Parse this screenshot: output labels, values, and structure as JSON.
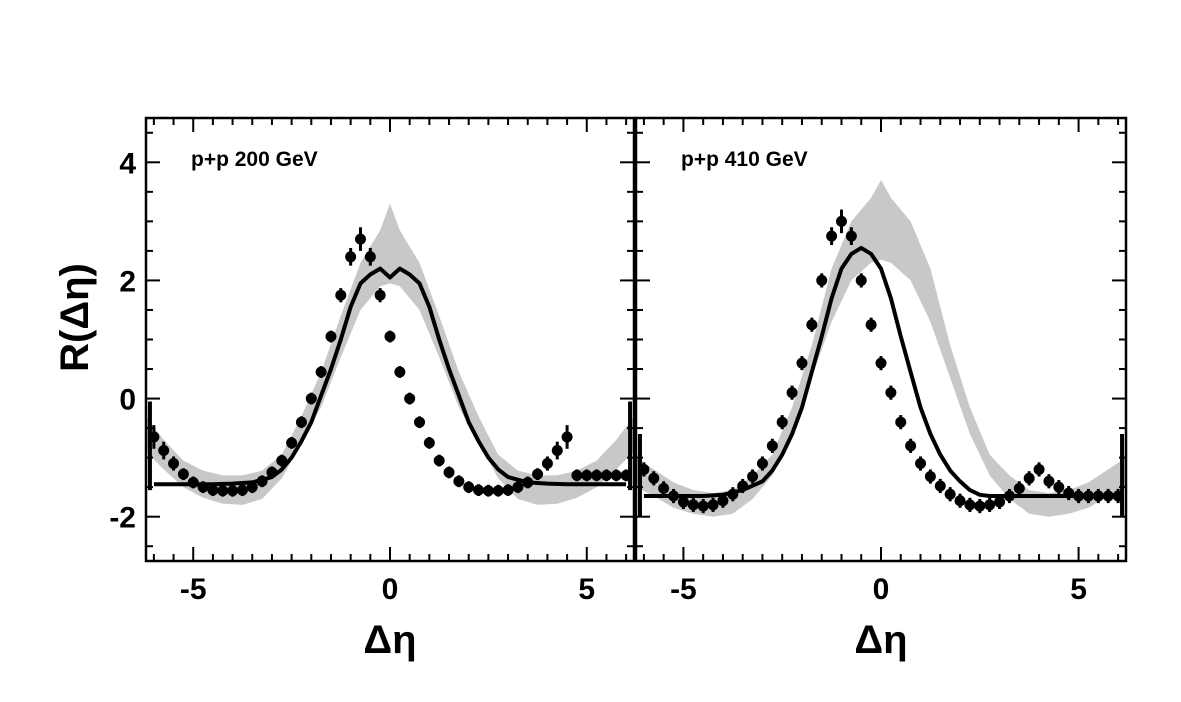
{
  "chart_data": [
    {
      "type": "scatter",
      "title": "p+p 200 GeV",
      "xlabel": "Δη",
      "ylabel": "R(Δη)",
      "xlim": [
        -6.2,
        6.2
      ],
      "ylim": [
        -2.75,
        4.75
      ],
      "xticks": [
        -5,
        0,
        5
      ],
      "yticks": [
        -2,
        0,
        2,
        4
      ],
      "x_tick_labels": [
        "-5",
        "0",
        "5"
      ],
      "y_tick_labels": [
        "-2",
        "0",
        "2",
        "4"
      ],
      "grid": false,
      "legend": "none",
      "series": [
        {
          "kind": "points",
          "x": [
            -6.0,
            -5.75,
            -5.5,
            -5.25,
            -5.0,
            -4.75,
            -4.5,
            -4.25,
            -4.0,
            -3.75,
            -3.5,
            -3.25,
            -3.0,
            -2.75,
            -2.5,
            -2.25,
            -2.0,
            -1.75,
            -1.5,
            -1.25,
            -1.0,
            -0.75,
            -0.5,
            -0.25,
            0.0,
            0.25,
            0.5,
            0.75,
            1.0,
            1.25,
            1.5,
            1.75,
            2.0,
            2.25,
            2.5,
            2.75,
            3.0,
            3.25,
            3.5,
            3.75,
            4.0,
            4.25,
            4.5,
            4.75,
            5.0,
            5.25,
            5.5,
            5.75,
            6.0
          ],
          "y": [
            -0.65,
            -0.88,
            -1.1,
            -1.28,
            -1.42,
            -1.5,
            -1.55,
            -1.56,
            -1.56,
            -1.55,
            -1.5,
            -1.4,
            -1.25,
            -1.05,
            -0.75,
            -0.4,
            0.0,
            0.45,
            1.05,
            1.75,
            2.4,
            2.7,
            2.4,
            1.75,
            1.05,
            0.45,
            0.0,
            -0.4,
            -0.75,
            -1.05,
            -1.25,
            -1.4,
            -1.5,
            -1.55,
            -1.56,
            -1.56,
            -1.55,
            -1.5,
            -1.42,
            -1.28,
            -1.1,
            -0.88,
            -0.65,
            -1.3,
            -1.3,
            -1.3,
            -1.3,
            -1.3,
            -1.3
          ],
          "yerr": [
            0.2,
            0.15,
            0.12,
            0.1,
            0.1,
            0.1,
            0.1,
            0.1,
            0.1,
            0.1,
            0.1,
            0.1,
            0.1,
            0.1,
            0.1,
            0.1,
            0.1,
            0.1,
            0.1,
            0.12,
            0.15,
            0.2,
            0.15,
            0.12,
            0.1,
            0.1,
            0.1,
            0.1,
            0.1,
            0.1,
            0.1,
            0.1,
            0.1,
            0.1,
            0.1,
            0.1,
            0.1,
            0.1,
            0.1,
            0.1,
            0.12,
            0.15,
            0.2,
            0.1,
            0.1,
            0.1,
            0.1,
            0.1,
            0.1
          ]
        },
        {
          "kind": "line",
          "x": [
            -6.0,
            -5.5,
            -5.0,
            -4.5,
            -4.0,
            -3.5,
            -3.0,
            -2.75,
            -2.5,
            -2.25,
            -2.0,
            -1.75,
            -1.5,
            -1.25,
            -1.0,
            -0.75,
            -0.5,
            -0.25,
            0.0,
            0.25,
            0.5,
            0.75,
            1.0,
            1.25,
            1.5,
            1.75,
            2.0,
            2.25,
            2.5,
            2.75,
            3.0,
            3.5,
            4.0,
            4.5,
            5.0,
            5.5,
            6.0
          ],
          "y": [
            -1.45,
            -1.45,
            -1.45,
            -1.45,
            -1.44,
            -1.42,
            -1.33,
            -1.2,
            -1.0,
            -0.72,
            -0.4,
            0.05,
            0.5,
            1.0,
            1.55,
            1.95,
            2.1,
            2.2,
            2.05,
            2.2,
            2.1,
            1.95,
            1.55,
            1.0,
            0.5,
            0.05,
            -0.4,
            -0.72,
            -1.0,
            -1.2,
            -1.33,
            -1.42,
            -1.44,
            -1.45,
            -1.45,
            -1.45,
            -1.45
          ]
        },
        {
          "kind": "band",
          "x": [
            -6.2,
            -5.75,
            -5.25,
            -4.75,
            -4.25,
            -3.75,
            -3.25,
            -2.75,
            -2.25,
            -1.75,
            -1.25,
            -0.75,
            -0.25,
            0.0,
            0.25,
            0.75,
            1.25,
            1.75,
            2.25,
            2.75,
            3.25,
            3.75,
            4.25,
            4.75,
            5.25,
            5.75,
            6.2
          ],
          "upper": [
            -0.3,
            -0.7,
            -1.05,
            -1.22,
            -1.3,
            -1.3,
            -1.22,
            -0.95,
            -0.3,
            0.45,
            1.4,
            2.3,
            2.85,
            3.3,
            2.85,
            2.3,
            1.4,
            0.45,
            -0.3,
            -0.95,
            -1.22,
            -1.3,
            -1.3,
            -1.22,
            -1.05,
            -0.7,
            -0.3
          ],
          "lower": [
            -0.9,
            -1.2,
            -1.5,
            -1.68,
            -1.78,
            -1.8,
            -1.7,
            -1.35,
            -0.75,
            -0.15,
            0.7,
            1.5,
            1.9,
            1.95,
            1.9,
            1.5,
            0.7,
            -0.15,
            -0.75,
            -1.35,
            -1.7,
            -1.8,
            -1.78,
            -1.68,
            -1.5,
            -1.2,
            -0.9
          ]
        },
        {
          "kind": "edge_errors",
          "x": [
            -6.1,
            6.1
          ],
          "low": [
            -1.55,
            -1.55
          ],
          "high": [
            -0.05,
            -0.05
          ]
        }
      ]
    },
    {
      "type": "scatter",
      "title": "p+p 410 GeV",
      "xlabel": "Δη",
      "ylabel": "",
      "xlim": [
        -6.2,
        6.2
      ],
      "ylim": [
        -2.75,
        4.75
      ],
      "xticks": [
        -5,
        0,
        5
      ],
      "x_tick_labels": [
        "-5",
        "0",
        "5"
      ],
      "grid": false,
      "legend": "none",
      "series": [
        {
          "kind": "points",
          "x": [
            -6.0,
            -5.75,
            -5.5,
            -5.25,
            -5.0,
            -4.75,
            -4.5,
            -4.25,
            -4.0,
            -3.75,
            -3.5,
            -3.25,
            -3.0,
            -2.75,
            -2.5,
            -2.25,
            -2.0,
            -1.75,
            -1.5,
            -1.25,
            -1.0,
            -0.75,
            -0.5,
            -0.25,
            0.0,
            0.25,
            0.5,
            0.75,
            1.0,
            1.25,
            1.5,
            1.75,
            2.0,
            2.25,
            2.5,
            2.75,
            3.0,
            3.25,
            3.5,
            3.75,
            4.0,
            4.25,
            4.5,
            4.75,
            5.0,
            5.25,
            5.5,
            5.75,
            6.0
          ],
          "y": [
            -1.2,
            -1.35,
            -1.52,
            -1.65,
            -1.75,
            -1.8,
            -1.82,
            -1.8,
            -1.73,
            -1.62,
            -1.48,
            -1.32,
            -1.1,
            -0.8,
            -0.4,
            0.1,
            0.6,
            1.25,
            2.0,
            2.75,
            3.0,
            2.75,
            2.0,
            1.25,
            0.6,
            0.1,
            -0.4,
            -0.8,
            -1.1,
            -1.32,
            -1.48,
            -1.62,
            -1.73,
            -1.8,
            -1.82,
            -1.8,
            -1.75,
            -1.65,
            -1.52,
            -1.35,
            -1.2,
            -1.4,
            -1.5,
            -1.6,
            -1.65,
            -1.65,
            -1.65,
            -1.65,
            -1.65
          ],
          "yerr": [
            0.12,
            0.12,
            0.12,
            0.12,
            0.12,
            0.12,
            0.12,
            0.12,
            0.12,
            0.12,
            0.12,
            0.12,
            0.12,
            0.12,
            0.12,
            0.12,
            0.12,
            0.12,
            0.12,
            0.15,
            0.2,
            0.15,
            0.12,
            0.12,
            0.12,
            0.12,
            0.12,
            0.12,
            0.12,
            0.12,
            0.12,
            0.12,
            0.12,
            0.12,
            0.12,
            0.12,
            0.12,
            0.12,
            0.12,
            0.12,
            0.12,
            0.12,
            0.12,
            0.12,
            0.12,
            0.12,
            0.12,
            0.12,
            0.12
          ]
        },
        {
          "kind": "line",
          "x": [
            -6.0,
            -5.5,
            -5.0,
            -4.5,
            -4.0,
            -3.5,
            -3.0,
            -2.75,
            -2.5,
            -2.25,
            -2.0,
            -1.75,
            -1.5,
            -1.25,
            -1.0,
            -0.75,
            -0.5,
            -0.25,
            0.0,
            0.25,
            0.5,
            0.75,
            1.0,
            1.25,
            1.5,
            1.75,
            2.0,
            2.25,
            2.5,
            2.75,
            3.0,
            3.5,
            4.0,
            4.5,
            5.0,
            5.5,
            6.0
          ],
          "y": [
            -1.65,
            -1.65,
            -1.65,
            -1.65,
            -1.63,
            -1.55,
            -1.4,
            -1.22,
            -0.95,
            -0.6,
            -0.15,
            0.45,
            1.05,
            1.7,
            2.2,
            2.45,
            2.55,
            2.45,
            2.2,
            1.7,
            1.05,
            0.45,
            -0.15,
            -0.6,
            -0.95,
            -1.22,
            -1.4,
            -1.55,
            -1.63,
            -1.65,
            -1.65,
            -1.65,
            -1.65,
            -1.65,
            -1.65,
            -1.65,
            -1.65
          ]
        },
        {
          "kind": "band",
          "x": [
            -6.2,
            -5.75,
            -5.25,
            -4.75,
            -4.25,
            -3.75,
            -3.25,
            -2.75,
            -2.25,
            -1.75,
            -1.25,
            -0.75,
            -0.25,
            0.0,
            0.25,
            0.75,
            1.25,
            1.75,
            2.25,
            2.75,
            3.25,
            3.75,
            4.25,
            4.75,
            5.25,
            5.75,
            6.2
          ],
          "upper": [
            -1.0,
            -1.2,
            -1.42,
            -1.55,
            -1.6,
            -1.55,
            -1.3,
            -0.95,
            -0.15,
            0.9,
            2.2,
            3.0,
            3.4,
            3.7,
            3.4,
            3.0,
            2.2,
            0.9,
            -0.15,
            -0.95,
            -1.3,
            -1.55,
            -1.6,
            -1.55,
            -1.42,
            -1.2,
            -1.0
          ],
          "lower": [
            -1.5,
            -1.65,
            -1.85,
            -1.95,
            -2.0,
            -1.95,
            -1.7,
            -1.3,
            -0.6,
            0.35,
            1.3,
            2.0,
            2.3,
            2.35,
            2.3,
            2.0,
            1.3,
            0.35,
            -0.6,
            -1.3,
            -1.7,
            -1.95,
            -2.0,
            -1.95,
            -1.85,
            -1.65,
            -1.5
          ]
        },
        {
          "kind": "edge_errors",
          "x": [
            -6.1,
            6.1
          ],
          "low": [
            -2.0,
            -2.0
          ],
          "high": [
            -0.6,
            -0.6
          ]
        }
      ]
    }
  ],
  "colors": {
    "marker": "#000000",
    "line": "#000000",
    "band": "#c8c8c8",
    "frame": "#000000"
  }
}
